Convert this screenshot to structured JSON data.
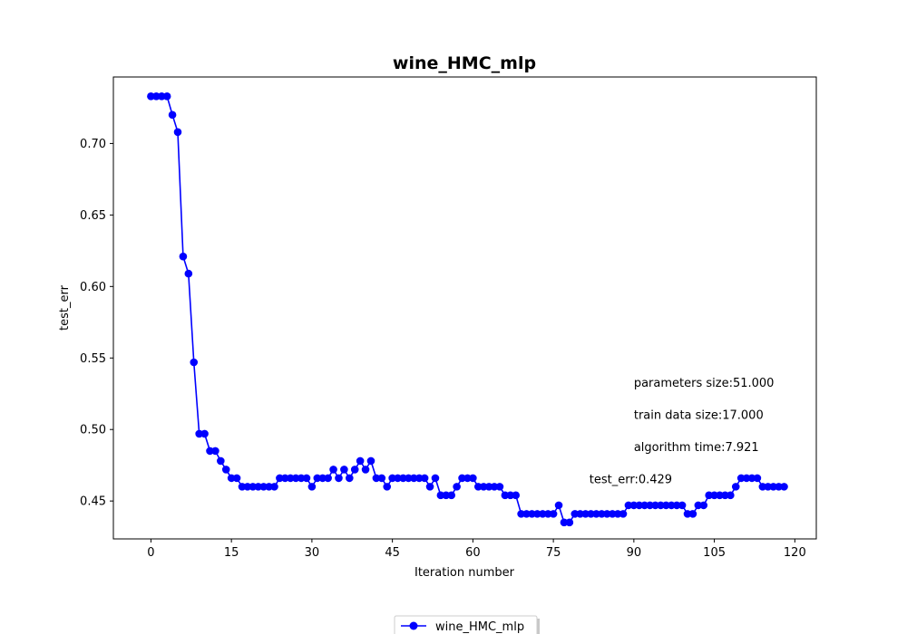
{
  "chart_data": {
    "type": "line",
    "title": "wine_HMC_mlp",
    "xlabel": "Iteration number",
    "ylabel": "test_err",
    "xlim": [
      -7,
      124
    ],
    "ylim": [
      0.4235,
      0.7465
    ],
    "xticks": [
      0,
      15,
      30,
      45,
      60,
      75,
      90,
      105,
      120
    ],
    "yticks": [
      0.45,
      0.5,
      0.55,
      0.6,
      0.65,
      0.7
    ],
    "ytick_labels": [
      "0.45",
      "0.50",
      "0.55",
      "0.60",
      "0.65",
      "0.70"
    ],
    "grid": false,
    "legend": "bottom-center",
    "series": [
      {
        "name": "wine_HMC_mlp",
        "color": "#0000ff",
        "marker": "circle",
        "x": [
          0,
          1,
          2,
          3,
          4,
          5,
          6,
          7,
          8,
          9,
          10,
          11,
          12,
          13,
          14,
          15,
          16,
          17,
          18,
          19,
          20,
          21,
          22,
          23,
          24,
          25,
          26,
          27,
          28,
          29,
          30,
          31,
          32,
          33,
          34,
          35,
          36,
          37,
          38,
          39,
          40,
          41,
          42,
          43,
          44,
          45,
          46,
          47,
          48,
          49,
          50,
          51,
          52,
          53,
          54,
          55,
          56,
          57,
          58,
          59,
          60,
          61,
          62,
          63,
          64,
          65,
          66,
          67,
          68,
          69,
          70,
          71,
          72,
          73,
          74,
          75,
          76,
          77,
          78,
          79,
          80,
          81,
          82,
          83,
          84,
          85,
          86,
          87,
          88,
          89,
          90,
          91,
          92,
          93,
          94,
          95,
          96,
          97,
          98,
          99,
          100,
          101,
          102,
          103,
          104,
          105,
          106,
          107,
          108,
          109,
          110,
          111,
          112,
          113,
          114,
          115,
          116,
          117,
          118
        ],
        "y": [
          0.733,
          0.733,
          0.733,
          0.733,
          0.72,
          0.708,
          0.621,
          0.609,
          0.547,
          0.497,
          0.497,
          0.485,
          0.485,
          0.478,
          0.472,
          0.466,
          0.466,
          0.46,
          0.46,
          0.46,
          0.46,
          0.46,
          0.46,
          0.46,
          0.466,
          0.466,
          0.466,
          0.466,
          0.466,
          0.466,
          0.46,
          0.466,
          0.466,
          0.466,
          0.472,
          0.466,
          0.472,
          0.466,
          0.472,
          0.478,
          0.472,
          0.478,
          0.466,
          0.466,
          0.46,
          0.466,
          0.466,
          0.466,
          0.466,
          0.466,
          0.466,
          0.466,
          0.46,
          0.466,
          0.454,
          0.454,
          0.454,
          0.46,
          0.466,
          0.466,
          0.466,
          0.46,
          0.46,
          0.46,
          0.46,
          0.46,
          0.454,
          0.454,
          0.454,
          0.441,
          0.441,
          0.441,
          0.441,
          0.441,
          0.441,
          0.441,
          0.447,
          0.435,
          0.435,
          0.441,
          0.441,
          0.441,
          0.441,
          0.441,
          0.441,
          0.441,
          0.441,
          0.441,
          0.441,
          0.447,
          0.447,
          0.447,
          0.447,
          0.447,
          0.447,
          0.447,
          0.447,
          0.447,
          0.447,
          0.447,
          0.441,
          0.441,
          0.447,
          0.447,
          0.454,
          0.454,
          0.454,
          0.454,
          0.454,
          0.46,
          0.466,
          0.466,
          0.466,
          0.466,
          0.46,
          0.46,
          0.46,
          0.46,
          0.46
        ]
      }
    ],
    "annotations": [
      {
        "text": "parameters size:51.000",
        "x": 90,
        "y": 0.53
      },
      {
        "text": "train data size:17.000",
        "x": 90,
        "y": 0.5075
      },
      {
        "text": "algorithm time:7.921",
        "x": 90,
        "y": 0.485
      },
      {
        "text": "test_err:0.429",
        "x": 81.7,
        "y": 0.4625
      }
    ]
  }
}
